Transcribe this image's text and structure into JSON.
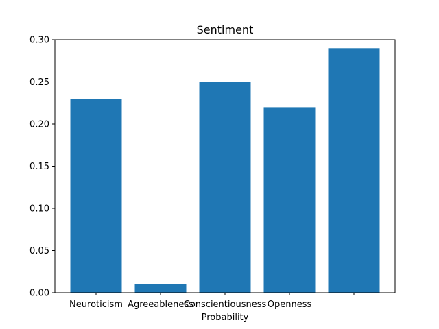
{
  "chart_data": {
    "type": "bar",
    "title": "Sentiment",
    "xlabel": "Probability",
    "ylabel": "",
    "categories": [
      "Neuroticism",
      "Agreeableness",
      "Conscientiousness",
      "Openness",
      ""
    ],
    "values": [
      0.23,
      0.01,
      0.25,
      0.22,
      0.29
    ],
    "ylim": [
      0,
      0.3
    ],
    "yticks": [
      "0.00",
      "0.05",
      "0.10",
      "0.15",
      "0.20",
      "0.25",
      "0.30"
    ],
    "bar_color": "#1f77b4",
    "grid": false
  }
}
